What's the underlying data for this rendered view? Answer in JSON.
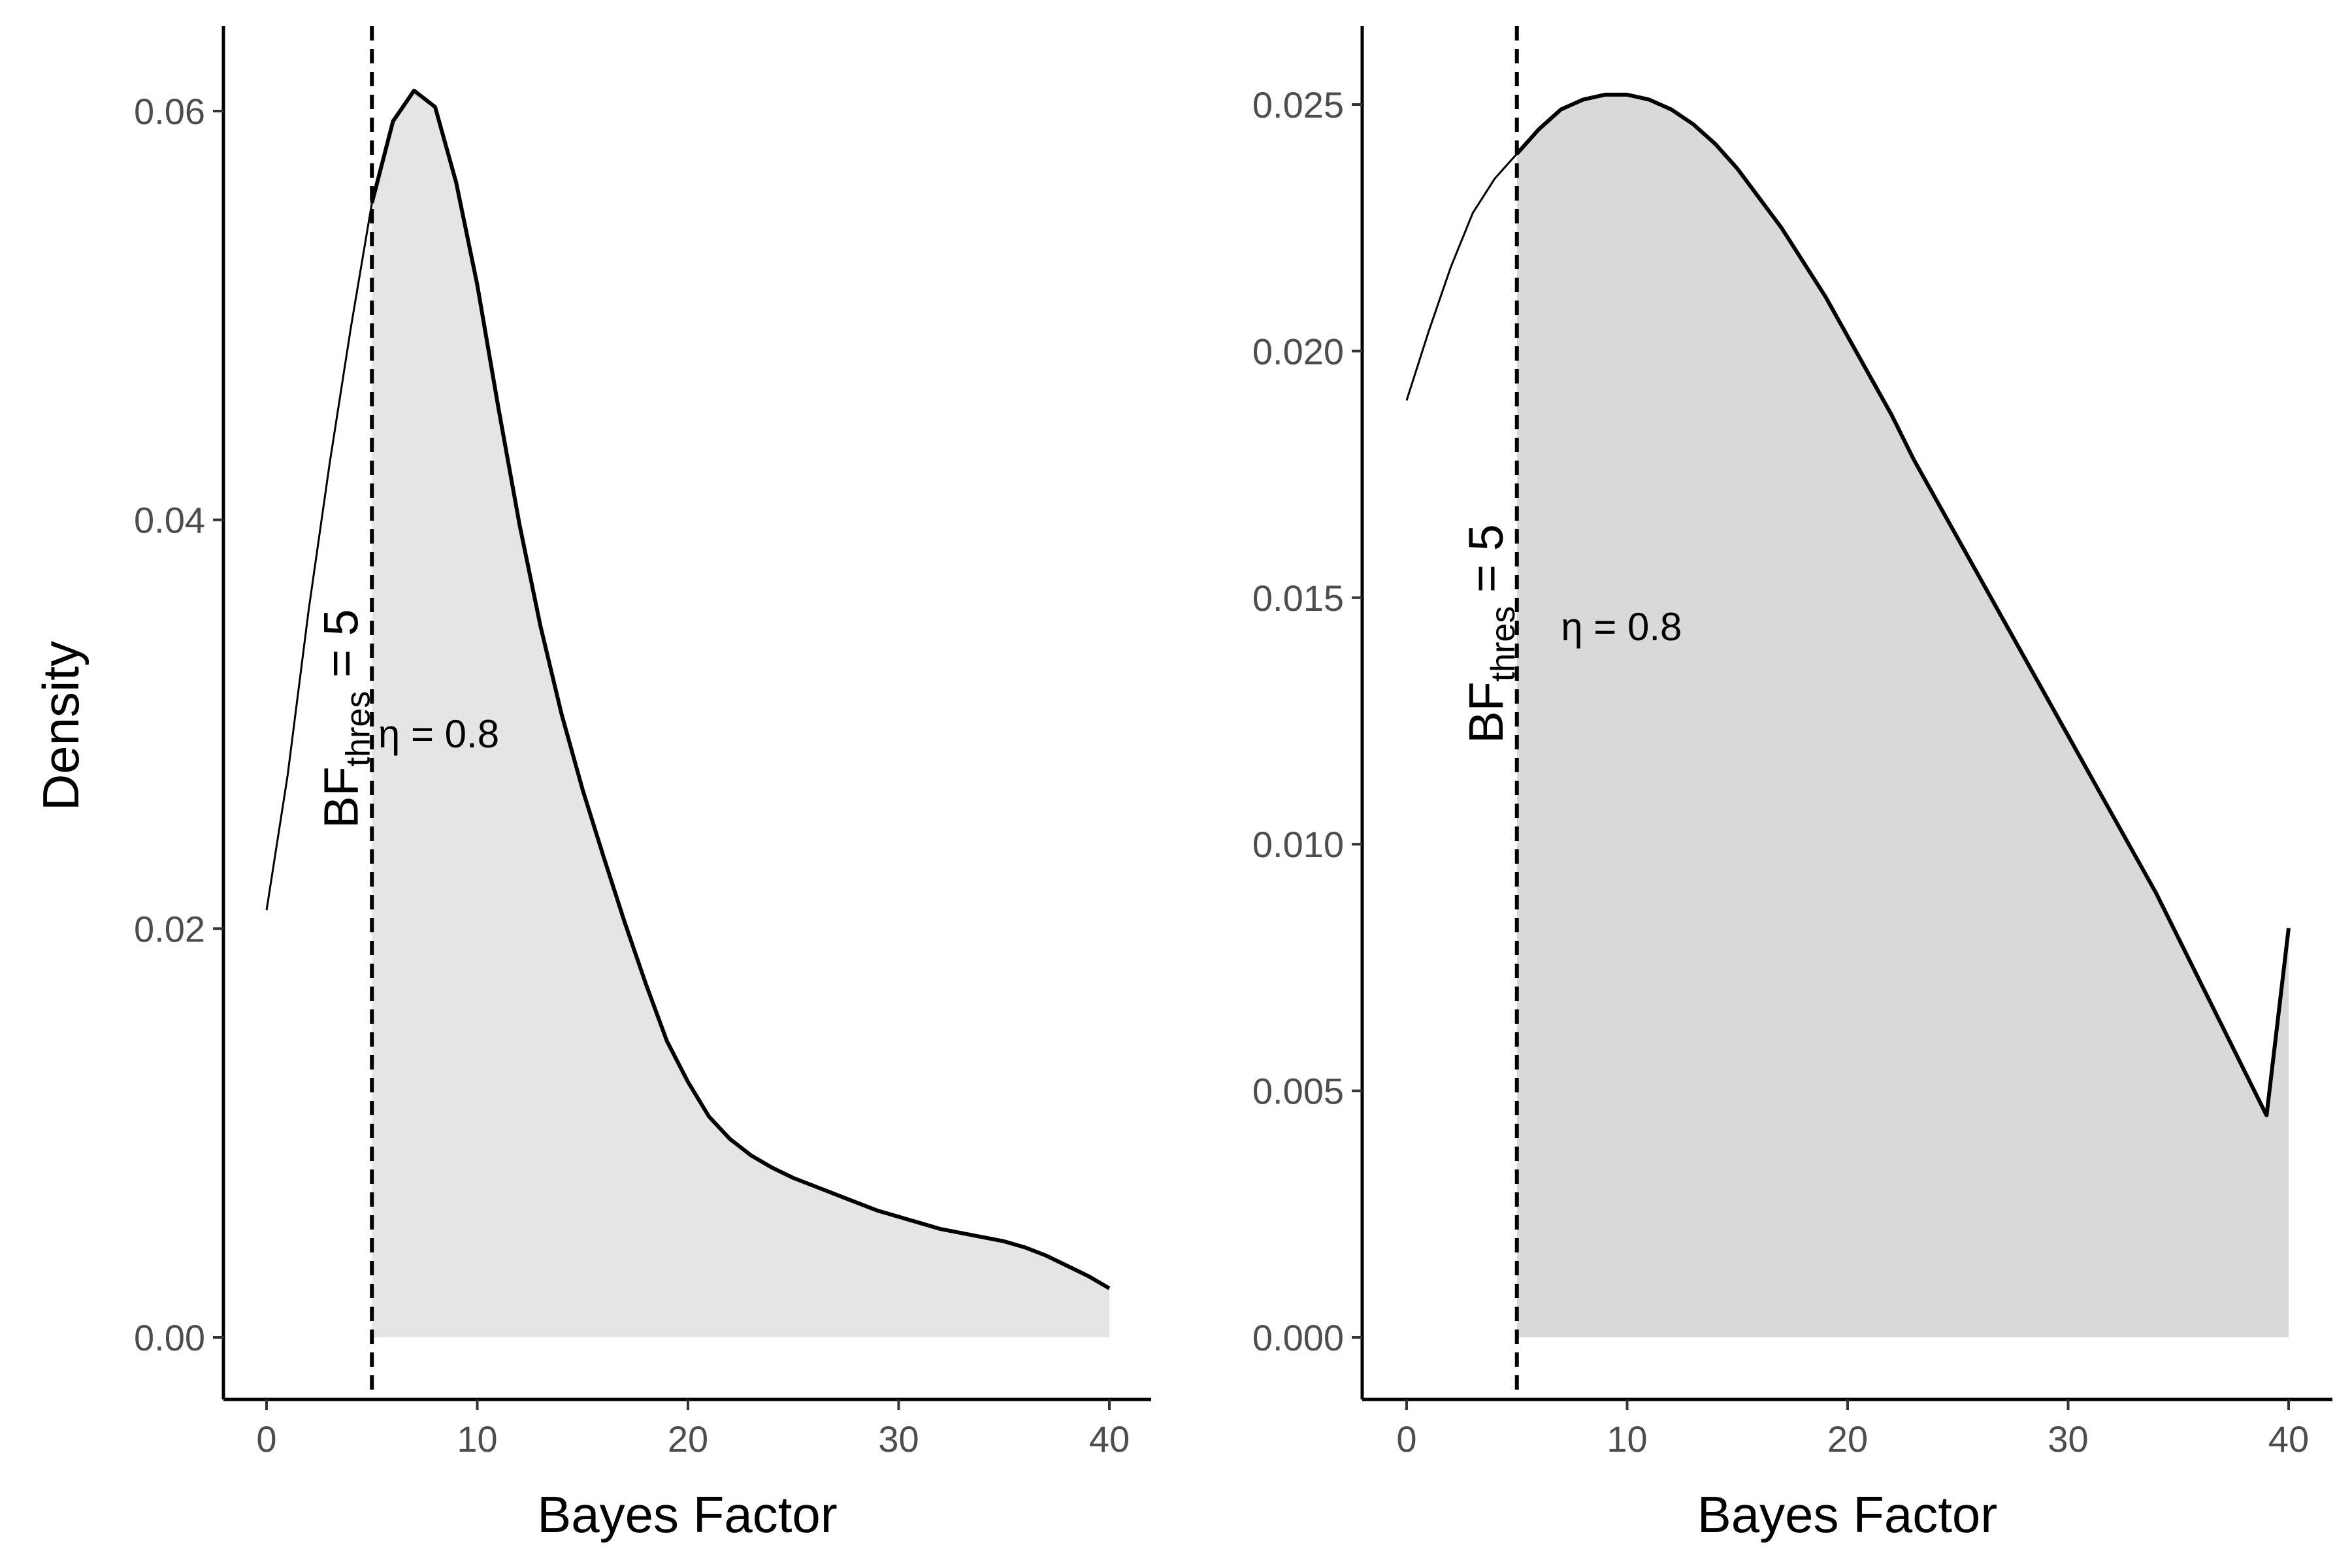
{
  "colors": {
    "curve": "#000000",
    "fill_left": "#e5e5e5",
    "fill_right": "#d9d9d9",
    "tick_text": "#4d4d4d"
  },
  "chart_data": [
    {
      "type": "area",
      "xlabel": "Bayes Factor",
      "ylabel": "Density",
      "xlim": [
        -2,
        42
      ],
      "ylim": [
        -0.003,
        0.0645
      ],
      "x_ticks": [
        0,
        10,
        20,
        30,
        40
      ],
      "y_ticks": [
        0.0,
        0.02,
        0.04,
        0.06
      ],
      "y_tick_labels": [
        "0.00",
        "0.02",
        "0.04",
        "0.06"
      ],
      "x_tick_labels": [
        "0",
        "10",
        "20",
        "30",
        "40"
      ],
      "threshold": 5,
      "threshold_label": {
        "main": "BF",
        "sub": "thres",
        "rest": " = 5"
      },
      "annotation": {
        "text": "η = 0.8",
        "x": 5.3,
        "y": 0.0295
      },
      "grid": false,
      "density": [
        [
          0,
          0.0209
        ],
        [
          1,
          0.0275
        ],
        [
          2,
          0.0356
        ],
        [
          3,
          0.0428
        ],
        [
          4,
          0.0494
        ],
        [
          5,
          0.0555
        ],
        [
          6,
          0.0595
        ],
        [
          7,
          0.061
        ],
        [
          8,
          0.0602
        ],
        [
          9,
          0.0565
        ],
        [
          10,
          0.0515
        ],
        [
          11,
          0.0455
        ],
        [
          12,
          0.0398
        ],
        [
          13,
          0.0348
        ],
        [
          14,
          0.0305
        ],
        [
          15,
          0.0268
        ],
        [
          16,
          0.0235
        ],
        [
          17,
          0.0203
        ],
        [
          18,
          0.0173
        ],
        [
          19,
          0.0145
        ],
        [
          20,
          0.0125
        ],
        [
          21,
          0.0108
        ],
        [
          22,
          0.0097
        ],
        [
          23,
          0.0089
        ],
        [
          24,
          0.0083
        ],
        [
          25,
          0.0078
        ],
        [
          26,
          0.0074
        ],
        [
          27,
          0.007
        ],
        [
          28,
          0.0066
        ],
        [
          29,
          0.0062
        ],
        [
          30,
          0.0059
        ],
        [
          31,
          0.0056
        ],
        [
          32,
          0.0053
        ],
        [
          33,
          0.0051
        ],
        [
          34,
          0.0049
        ],
        [
          35,
          0.0047
        ],
        [
          36,
          0.0044
        ],
        [
          37,
          0.004
        ],
        [
          38,
          0.0035
        ],
        [
          39,
          0.003
        ],
        [
          40,
          0.0024
        ]
      ]
    },
    {
      "type": "area",
      "xlabel": "Bayes Factor",
      "ylabel": "",
      "xlim": [
        -2,
        42
      ],
      "ylim": [
        -0.0013,
        0.0265
      ],
      "x_ticks": [
        0,
        10,
        20,
        30,
        40
      ],
      "y_ticks": [
        0.0,
        0.005,
        0.01,
        0.015,
        0.02,
        0.025
      ],
      "y_tick_labels": [
        "0.000",
        "0.005",
        "0.010",
        "0.015",
        "0.020",
        "0.025"
      ],
      "x_tick_labels": [
        "0",
        "10",
        "20",
        "30",
        "40"
      ],
      "threshold": 5,
      "threshold_label": {
        "main": "BF",
        "sub": "thres",
        "rest": " = 5"
      },
      "annotation": {
        "text": "η = 0.8",
        "x": 7,
        "y": 0.0144
      },
      "grid": false,
      "density": [
        [
          0,
          0.019
        ],
        [
          1,
          0.0204
        ],
        [
          2,
          0.0217
        ],
        [
          3,
          0.0228
        ],
        [
          4,
          0.0235
        ],
        [
          5,
          0.024
        ],
        [
          6,
          0.0245
        ],
        [
          7,
          0.0249
        ],
        [
          8,
          0.0251
        ],
        [
          9,
          0.0252
        ],
        [
          10,
          0.0252
        ],
        [
          11,
          0.0251
        ],
        [
          12,
          0.0249
        ],
        [
          13,
          0.0246
        ],
        [
          14,
          0.0242
        ],
        [
          15,
          0.0237
        ],
        [
          16,
          0.0231
        ],
        [
          17,
          0.0225
        ],
        [
          18,
          0.0218
        ],
        [
          19,
          0.0211
        ],
        [
          20,
          0.0203
        ],
        [
          21,
          0.0195
        ],
        [
          22,
          0.0187
        ],
        [
          23,
          0.0178
        ],
        [
          24,
          0.017
        ],
        [
          25,
          0.0162
        ],
        [
          26,
          0.0154
        ],
        [
          27,
          0.0146
        ],
        [
          28,
          0.0138
        ],
        [
          29,
          0.013
        ],
        [
          30,
          0.0122
        ],
        [
          31,
          0.0114
        ],
        [
          32,
          0.0106
        ],
        [
          33,
          0.0098
        ],
        [
          34,
          0.009
        ],
        [
          35,
          0.0081
        ],
        [
          36,
          0.0072
        ],
        [
          37,
          0.0063
        ],
        [
          38,
          0.0054
        ],
        [
          39,
          0.0045
        ],
        [
          40,
          0.0083
        ]
      ]
    }
  ]
}
